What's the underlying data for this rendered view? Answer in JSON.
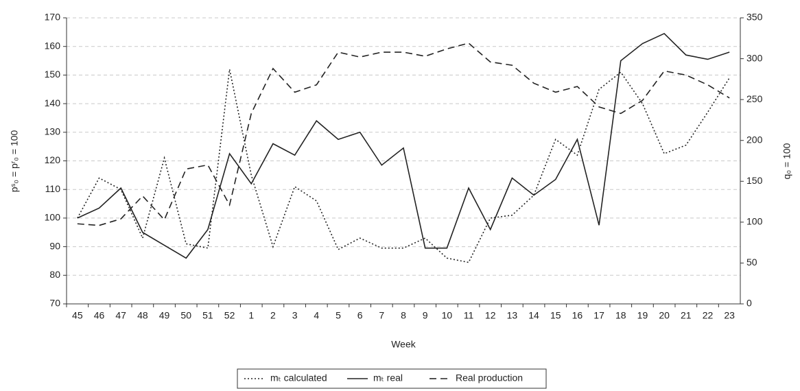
{
  "chart_data": {
    "type": "line",
    "x_label": "Week",
    "y_label": "pˢ₀ = pʳ₀ = 100",
    "y2_label": "q₀ = 100",
    "categories": [
      "45",
      "46",
      "47",
      "48",
      "49",
      "50",
      "51",
      "52",
      "1",
      "2",
      "3",
      "4",
      "5",
      "6",
      "7",
      "8",
      "9",
      "10",
      "11",
      "12",
      "13",
      "14",
      "15",
      "16",
      "17",
      "18",
      "19",
      "20",
      "21",
      "22",
      "23"
    ],
    "ylim": [
      70,
      170
    ],
    "yticks": [
      70,
      80,
      90,
      100,
      110,
      120,
      130,
      140,
      150,
      160,
      170
    ],
    "y2lim": [
      0,
      350
    ],
    "y2ticks": [
      0,
      50,
      100,
      150,
      200,
      250,
      300,
      350
    ],
    "grid": true,
    "legend": "bottom",
    "series": [
      {
        "name": "mₜ calculated",
        "color": "#222222",
        "dash": "dotted",
        "values": [
          100,
          114,
          110,
          93,
          121,
          91,
          89.5,
          152,
          115,
          90,
          111,
          106,
          89,
          93,
          89.5,
          89.5,
          93,
          86,
          84.5,
          100,
          101,
          108,
          127.5,
          122,
          145,
          151,
          140,
          122.5,
          125.5,
          137,
          149
        ]
      },
      {
        "name": "mₜ real",
        "color": "#222222",
        "dash": "solid",
        "values": [
          100,
          103.5,
          110.5,
          95,
          90.5,
          86,
          96,
          122.5,
          112,
          126,
          122,
          134,
          127.5,
          130,
          118.5,
          124.5,
          89.5,
          89.5,
          110.5,
          96,
          114,
          108,
          113.5,
          127.5,
          97.5,
          155,
          161,
          164.5,
          157,
          155.5,
          158
        ]
      },
      {
        "name": "Real production",
        "color": "#222222",
        "dash": "dashed",
        "axis": "y2",
        "values": [
          98,
          96,
          104,
          132,
          103,
          165,
          170,
          121,
          233,
          288,
          259,
          268,
          308,
          302,
          308,
          308,
          303,
          312,
          319,
          296,
          292,
          270,
          259,
          266,
          241,
          233,
          249,
          285,
          280,
          268,
          252
        ]
      }
    ]
  }
}
